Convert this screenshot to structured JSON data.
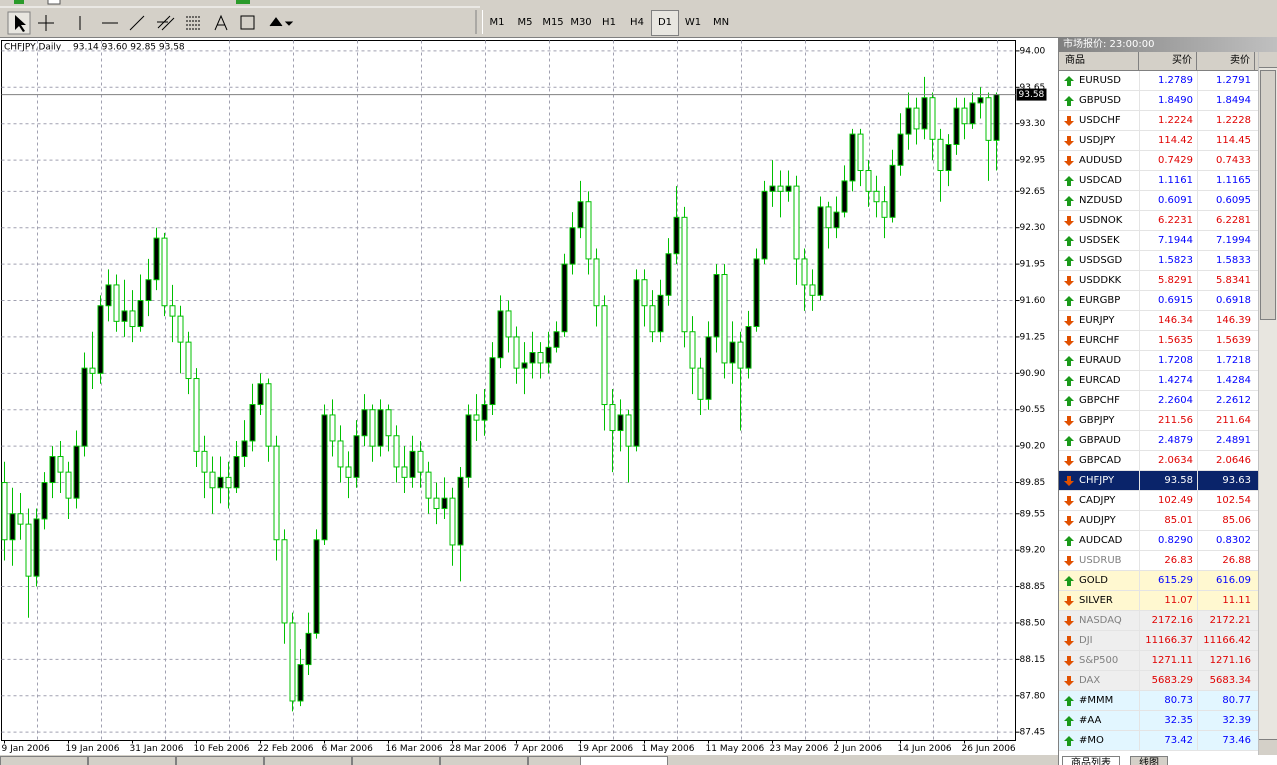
{
  "toolbar": {
    "timeframes": [
      "M1",
      "M5",
      "M15",
      "M30",
      "H1",
      "H4",
      "D1",
      "W1",
      "MN"
    ],
    "active": "D1"
  },
  "chart_data": {
    "type": "candlestick",
    "title": "CHFJPY,Daily",
    "ohlc_text": "93.14 93.60 92.85 93.58",
    "up_color": "#000000",
    "down_color": "#ffffff",
    "wick_color": "#00c000",
    "grid": true,
    "bid": 93.58,
    "ylim": [
      87.37,
      94.1
    ],
    "yticks": [
      {
        "value": 94,
        "label": "94.00"
      },
      93.65,
      {
        "value": 93.3,
        "label": "93.30"
      },
      92.95,
      92.65,
      {
        "value": 92.3,
        "label": "92.30"
      },
      91.95,
      {
        "value": 91.6,
        "label": "91.60"
      },
      91.25,
      {
        "value": 90.9,
        "label": "90.90"
      },
      90.55,
      {
        "value": 90.2,
        "label": "90.20"
      },
      89.85,
      89.55,
      {
        "value": 89.2,
        "label": "89.20"
      },
      88.85,
      {
        "value": 88.5,
        "label": "88.50"
      },
      88.15,
      {
        "value": 87.8,
        "label": "87.80"
      },
      87.45
    ],
    "categories": [
      "9 Jan 2006",
      null,
      null,
      null,
      null,
      null,
      null,
      null,
      "19 Jan 2006",
      null,
      null,
      null,
      null,
      null,
      null,
      null,
      "31 Jan 2006",
      null,
      null,
      null,
      null,
      null,
      null,
      null,
      "10 Feb 2006",
      null,
      null,
      null,
      null,
      null,
      null,
      null,
      "22 Feb 2006",
      null,
      null,
      null,
      null,
      null,
      null,
      null,
      "6 Mar 2006",
      null,
      null,
      null,
      null,
      null,
      null,
      null,
      "16 Mar 2006",
      null,
      null,
      null,
      null,
      null,
      null,
      null,
      "28 Mar 2006",
      null,
      null,
      null,
      null,
      null,
      null,
      null,
      "7 Apr 2006",
      null,
      null,
      null,
      null,
      null,
      null,
      null,
      "19 Apr 2006",
      null,
      null,
      null,
      null,
      null,
      null,
      null,
      "1 May 2006",
      null,
      null,
      null,
      null,
      null,
      null,
      null,
      "11 May 2006",
      null,
      null,
      null,
      null,
      null,
      null,
      null,
      "23 May 2006",
      null,
      null,
      null,
      null,
      null,
      null,
      null,
      "2 Jun 2006",
      null,
      null,
      null,
      null,
      null,
      null,
      null,
      "14 Jun 2006",
      null,
      null,
      null,
      null,
      null,
      null,
      null,
      "26 Jun 2006",
      null,
      null,
      null,
      null
    ],
    "ohlc": [
      [
        89.85,
        90.05,
        89.1,
        89.3
      ],
      [
        89.3,
        89.8,
        89.05,
        89.55
      ],
      [
        89.55,
        89.75,
        89.3,
        89.45
      ],
      [
        89.45,
        89.6,
        88.55,
        88.95
      ],
      [
        88.95,
        89.6,
        88.85,
        89.5
      ],
      [
        89.5,
        89.95,
        89.4,
        89.85
      ],
      [
        89.85,
        90.2,
        89.7,
        90.1
      ],
      [
        90.1,
        90.25,
        89.75,
        89.95
      ],
      [
        89.95,
        90.05,
        89.5,
        89.7
      ],
      [
        89.7,
        90.35,
        89.6,
        90.2
      ],
      [
        90.2,
        91.1,
        90.1,
        90.95
      ],
      [
        90.95,
        91.3,
        90.75,
        90.9
      ],
      [
        90.9,
        91.65,
        90.8,
        91.55
      ],
      [
        91.55,
        91.9,
        91.4,
        91.75
      ],
      [
        91.75,
        91.85,
        91.3,
        91.4
      ],
      [
        91.4,
        91.8,
        91.25,
        91.5
      ],
      [
        91.5,
        91.7,
        91.2,
        91.35
      ],
      [
        91.35,
        91.85,
        91.3,
        91.6
      ],
      [
        91.6,
        92.0,
        91.45,
        91.8
      ],
      [
        91.8,
        92.3,
        91.7,
        92.2
      ],
      [
        92.2,
        92.25,
        91.45,
        91.55
      ],
      [
        91.55,
        91.75,
        91.2,
        91.45
      ],
      [
        91.45,
        91.55,
        90.9,
        91.2
      ],
      [
        91.2,
        91.3,
        90.7,
        90.85
      ],
      [
        90.85,
        90.95,
        90.0,
        90.15
      ],
      [
        90.15,
        90.3,
        89.7,
        89.95
      ],
      [
        89.95,
        90.1,
        89.55,
        89.8
      ],
      [
        89.8,
        90.1,
        89.65,
        89.9
      ],
      [
        89.9,
        90.05,
        89.6,
        89.8
      ],
      [
        89.8,
        90.25,
        89.75,
        90.1
      ],
      [
        90.1,
        90.45,
        90.0,
        90.25
      ],
      [
        90.25,
        90.8,
        90.15,
        90.6
      ],
      [
        90.6,
        90.9,
        90.5,
        90.8
      ],
      [
        90.8,
        90.85,
        90.05,
        90.2
      ],
      [
        90.2,
        90.3,
        89.1,
        89.3
      ],
      [
        89.3,
        89.4,
        88.3,
        88.5
      ],
      [
        88.5,
        88.6,
        87.65,
        87.75
      ],
      [
        87.75,
        88.25,
        87.7,
        88.1
      ],
      [
        88.1,
        88.6,
        88.0,
        88.4
      ],
      [
        88.4,
        89.4,
        88.35,
        89.3
      ],
      [
        89.3,
        90.6,
        89.25,
        90.5
      ],
      [
        90.5,
        90.65,
        90.1,
        90.25
      ],
      [
        90.25,
        90.4,
        89.85,
        90.0
      ],
      [
        90.0,
        90.15,
        89.7,
        89.9
      ],
      [
        89.9,
        90.45,
        89.8,
        90.3
      ],
      [
        90.3,
        90.7,
        90.2,
        90.55
      ],
      [
        90.55,
        90.6,
        90.05,
        90.2
      ],
      [
        90.2,
        90.65,
        90.1,
        90.55
      ],
      [
        90.55,
        90.6,
        90.15,
        90.3
      ],
      [
        90.3,
        90.4,
        89.85,
        90.0
      ],
      [
        90.0,
        90.2,
        89.75,
        89.9
      ],
      [
        89.9,
        90.3,
        89.8,
        90.15
      ],
      [
        90.15,
        90.25,
        89.8,
        89.95
      ],
      [
        89.95,
        90.05,
        89.55,
        89.7
      ],
      [
        89.7,
        89.85,
        89.45,
        89.6
      ],
      [
        89.6,
        89.9,
        89.5,
        89.7
      ],
      [
        89.7,
        89.8,
        89.05,
        89.25
      ],
      [
        89.25,
        90.0,
        88.9,
        89.9
      ],
      [
        89.9,
        90.6,
        89.8,
        90.5
      ],
      [
        90.5,
        90.7,
        90.25,
        90.45
      ],
      [
        90.45,
        90.75,
        90.3,
        90.6
      ],
      [
        90.6,
        91.2,
        90.5,
        91.05
      ],
      [
        91.05,
        91.65,
        90.95,
        91.5
      ],
      [
        91.5,
        91.6,
        91.1,
        91.25
      ],
      [
        91.25,
        91.35,
        90.8,
        90.95
      ],
      [
        90.95,
        91.2,
        90.7,
        91.0
      ],
      [
        91.0,
        91.3,
        90.85,
        91.1
      ],
      [
        91.1,
        91.2,
        90.85,
        91.0
      ],
      [
        91.0,
        91.3,
        90.9,
        91.15
      ],
      [
        91.15,
        91.4,
        91.1,
        91.3
      ],
      [
        91.3,
        92.05,
        91.25,
        91.95
      ],
      [
        91.95,
        92.45,
        91.85,
        92.3
      ],
      [
        92.3,
        92.75,
        92.2,
        92.55
      ],
      [
        92.55,
        92.65,
        91.85,
        92.0
      ],
      [
        92.0,
        92.1,
        91.35,
        91.55
      ],
      [
        91.55,
        91.65,
        90.35,
        90.6
      ],
      [
        90.6,
        90.75,
        89.95,
        90.35
      ],
      [
        90.35,
        90.65,
        90.15,
        90.5
      ],
      [
        90.5,
        90.55,
        89.85,
        90.2
      ],
      [
        90.2,
        91.9,
        90.15,
        91.8
      ],
      [
        91.8,
        91.9,
        91.35,
        91.55
      ],
      [
        91.55,
        91.7,
        91.2,
        91.3
      ],
      [
        91.3,
        91.8,
        91.2,
        91.65
      ],
      [
        91.65,
        92.2,
        91.55,
        92.05
      ],
      [
        92.05,
        92.7,
        91.95,
        92.4
      ],
      [
        92.4,
        92.5,
        91.15,
        91.3
      ],
      [
        91.3,
        91.45,
        90.7,
        90.95
      ],
      [
        90.95,
        91.05,
        90.5,
        90.65
      ],
      [
        90.65,
        91.4,
        90.55,
        91.25
      ],
      [
        91.25,
        91.95,
        91.1,
        91.85
      ],
      [
        91.85,
        91.95,
        90.85,
        91.0
      ],
      [
        91.0,
        91.4,
        90.8,
        91.2
      ],
      [
        91.2,
        91.3,
        90.35,
        90.95
      ],
      [
        90.95,
        91.5,
        90.85,
        91.35
      ],
      [
        91.35,
        92.1,
        91.3,
        92.0
      ],
      [
        92.0,
        92.75,
        91.95,
        92.65
      ],
      [
        92.65,
        92.95,
        92.5,
        92.7
      ],
      [
        92.7,
        92.85,
        92.4,
        92.65
      ],
      [
        92.65,
        92.85,
        92.55,
        92.7
      ],
      [
        92.7,
        92.8,
        91.75,
        92.0
      ],
      [
        92.0,
        92.1,
        91.5,
        91.75
      ],
      [
        91.75,
        91.9,
        91.5,
        91.65
      ],
      [
        91.65,
        92.6,
        91.6,
        92.5
      ],
      [
        92.5,
        92.55,
        92.1,
        92.3
      ],
      [
        92.3,
        92.6,
        92.2,
        92.45
      ],
      [
        92.45,
        92.9,
        92.4,
        92.75
      ],
      [
        92.75,
        93.25,
        92.65,
        93.2
      ],
      [
        93.2,
        93.25,
        92.7,
        92.85
      ],
      [
        92.85,
        92.95,
        92.5,
        92.65
      ],
      [
        92.65,
        92.8,
        92.4,
        92.55
      ],
      [
        92.55,
        92.7,
        92.2,
        92.4
      ],
      [
        92.4,
        93.05,
        92.35,
        92.9
      ],
      [
        92.9,
        93.4,
        92.8,
        93.2
      ],
      [
        93.2,
        93.6,
        93.05,
        93.45
      ],
      [
        93.45,
        93.55,
        93.1,
        93.25
      ],
      [
        93.25,
        93.75,
        93.15,
        93.55
      ],
      [
        93.55,
        93.6,
        92.95,
        93.15
      ],
      [
        93.15,
        93.25,
        92.55,
        92.85
      ],
      [
        92.85,
        93.2,
        92.7,
        93.1
      ],
      [
        93.1,
        93.55,
        93.0,
        93.45
      ],
      [
        93.45,
        93.55,
        93.15,
        93.3
      ],
      [
        93.3,
        93.6,
        93.25,
        93.5
      ],
      [
        93.5,
        93.65,
        93.35,
        93.55
      ],
      [
        93.55,
        93.6,
        92.75,
        93.14
      ],
      [
        93.14,
        93.6,
        92.85,
        93.58
      ]
    ]
  },
  "market_watch": {
    "title": "市场报价: 23:00:00",
    "columns": [
      "商品",
      "买价",
      "卖价"
    ],
    "tabs": [
      "商品列表",
      "线图"
    ],
    "rows": [
      {
        "symbol": "EURUSD",
        "dir": "up",
        "bid": "1.2789",
        "ask": "1.2791"
      },
      {
        "symbol": "GBPUSD",
        "dir": "up",
        "bid": "1.8490",
        "ask": "1.8494"
      },
      {
        "symbol": "USDCHF",
        "dir": "down",
        "bid": "1.2224",
        "ask": "1.2228"
      },
      {
        "symbol": "USDJPY",
        "dir": "down",
        "bid": "114.42",
        "ask": "114.45"
      },
      {
        "symbol": "AUDUSD",
        "dir": "down",
        "bid": "0.7429",
        "ask": "0.7433"
      },
      {
        "symbol": "USDCAD",
        "dir": "up",
        "bid": "1.1161",
        "ask": "1.1165"
      },
      {
        "symbol": "NZDUSD",
        "dir": "up",
        "bid": "0.6091",
        "ask": "0.6095"
      },
      {
        "symbol": "USDNOK",
        "dir": "down",
        "bid": "6.2231",
        "ask": "6.2281"
      },
      {
        "symbol": "USDSEK",
        "dir": "up",
        "bid": "7.1944",
        "ask": "7.1994"
      },
      {
        "symbol": "USDSGD",
        "dir": "up",
        "bid": "1.5823",
        "ask": "1.5833"
      },
      {
        "symbol": "USDDKK",
        "dir": "down",
        "bid": "5.8291",
        "ask": "5.8341"
      },
      {
        "symbol": "EURGBP",
        "dir": "up",
        "bid": "0.6915",
        "ask": "0.6918"
      },
      {
        "symbol": "EURJPY",
        "dir": "down",
        "bid": "146.34",
        "ask": "146.39"
      },
      {
        "symbol": "EURCHF",
        "dir": "down",
        "bid": "1.5635",
        "ask": "1.5639"
      },
      {
        "symbol": "EURAUD",
        "dir": "up",
        "bid": "1.7208",
        "ask": "1.7218"
      },
      {
        "symbol": "EURCAD",
        "dir": "up",
        "bid": "1.4274",
        "ask": "1.4284"
      },
      {
        "symbol": "GBPCHF",
        "dir": "up",
        "bid": "2.2604",
        "ask": "2.2612"
      },
      {
        "symbol": "GBPJPY",
        "dir": "down",
        "bid": "211.56",
        "ask": "211.64"
      },
      {
        "symbol": "GBPAUD",
        "dir": "up",
        "bid": "2.4879",
        "ask": "2.4891"
      },
      {
        "symbol": "GBPCAD",
        "dir": "down",
        "bid": "2.0634",
        "ask": "2.0646"
      },
      {
        "symbol": "CHFJPY",
        "dir": "down",
        "bid": "93.58",
        "ask": "93.63",
        "bg": "#0a246a"
      },
      {
        "symbol": "CADJPY",
        "dir": "down",
        "bid": "102.49",
        "ask": "102.54"
      },
      {
        "symbol": "AUDJPY",
        "dir": "down",
        "bid": "85.01",
        "ask": "85.06"
      },
      {
        "symbol": "AUDCAD",
        "dir": "up",
        "bid": "0.8290",
        "ask": "0.8302"
      },
      {
        "symbol": "USDRUB",
        "dir": "down",
        "bid": "26.83",
        "ask": "26.88",
        "muted": true
      },
      {
        "symbol": "GOLD",
        "dir": "up",
        "bid": "615.29",
        "ask": "616.09",
        "bg": "#fff8d0"
      },
      {
        "symbol": "SILVER",
        "dir": "down",
        "bid": "11.07",
        "ask": "11.11",
        "bg": "#fff8d0"
      },
      {
        "symbol": "NASDAQ",
        "dir": "down",
        "bid": "2172.16",
        "ask": "2172.21",
        "bg": "#eeeeee",
        "muted": true
      },
      {
        "symbol": "DJI",
        "dir": "down",
        "bid": "11166.37",
        "ask": "11166.42",
        "bg": "#eeeeee",
        "muted": true
      },
      {
        "symbol": "S&P500",
        "dir": "down",
        "bid": "1271.11",
        "ask": "1271.16",
        "bg": "#eeeeee",
        "muted": true
      },
      {
        "symbol": "DAX",
        "dir": "down",
        "bid": "5683.29",
        "ask": "5683.34",
        "bg": "#eeeeee",
        "muted": true
      },
      {
        "symbol": "#MMM",
        "dir": "up",
        "bid": "80.73",
        "ask": "80.77",
        "bg": "#e2f6ff"
      },
      {
        "symbol": "#AA",
        "dir": "up",
        "bid": "32.35",
        "ask": "32.39",
        "bg": "#e2f6ff"
      },
      {
        "symbol": "#MO",
        "dir": "up",
        "bid": "73.42",
        "ask": "73.46",
        "bg": "#e2f6ff"
      }
    ]
  }
}
